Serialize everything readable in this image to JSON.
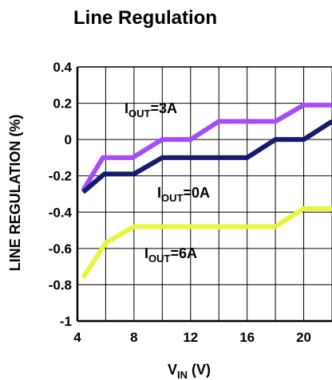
{
  "chart_data": {
    "type": "line",
    "title": "Line Regulation",
    "xlabel": {
      "main": "V",
      "sub": "IN",
      "unit": " (V)"
    },
    "ylabel": "LINE REGULATION (%)",
    "xlim": [
      4,
      22
    ],
    "ylim": [
      -1,
      0.4
    ],
    "x_ticks": [
      4,
      8,
      12,
      16,
      20
    ],
    "x_tick_labels": [
      "4",
      "8",
      "12",
      "16",
      "20"
    ],
    "x_gridlines": [
      4,
      6,
      8,
      10,
      12,
      14,
      16,
      18,
      20,
      22
    ],
    "y_ticks": [
      -1,
      -0.8,
      -0.6,
      -0.4,
      -0.2,
      0,
      0.2,
      0.4
    ],
    "y_tick_labels": [
      "-1",
      "-0.8",
      "-0.6",
      "-0.4",
      "-0.2",
      "0",
      "0.2",
      "0.4"
    ],
    "grid": true,
    "series": [
      {
        "name": "IOUT=3A",
        "color": "#a64cf5",
        "label": {
          "main": "I",
          "sub": "OUT",
          "rest": "=3A"
        },
        "x": [
          4.4,
          5.8,
          7.9,
          10,
          12,
          14,
          18,
          20,
          22
        ],
        "y": [
          -0.28,
          -0.1,
          -0.1,
          0,
          0,
          0.1,
          0.1,
          0.19,
          0.19
        ]
      },
      {
        "name": "IOUT=0A",
        "color": "#151b6e",
        "label": {
          "main": "I",
          "sub": "OUT",
          "rest": "=0A"
        },
        "x": [
          4.4,
          5.9,
          8,
          10,
          16,
          18,
          20,
          22
        ],
        "y": [
          -0.29,
          -0.19,
          -0.19,
          -0.1,
          -0.1,
          0,
          0,
          0.1
        ]
      },
      {
        "name": "IOUT=6A",
        "color": "#e8f53d",
        "label": {
          "main": "I",
          "sub": "OUT",
          "rest": "=6A"
        },
        "x": [
          4.4,
          6,
          8,
          18,
          20,
          22
        ],
        "y": [
          -0.76,
          -0.57,
          -0.48,
          -0.48,
          -0.38,
          -0.38
        ]
      }
    ]
  }
}
